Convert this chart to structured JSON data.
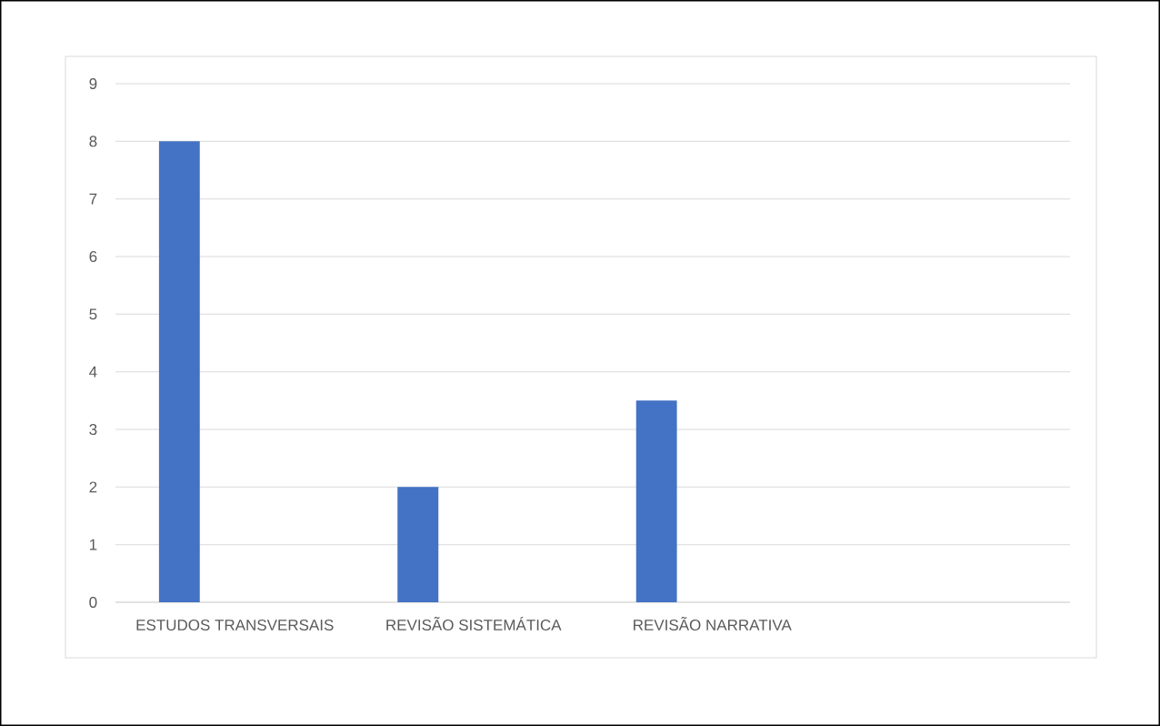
{
  "chart_data": {
    "type": "bar",
    "categories": [
      "ESTUDOS TRANSVERSAIS",
      "REVISÃO SISTEMÁTICA",
      "REVISÃO NARRATIVA",
      null
    ],
    "values": [
      8,
      2,
      3.5,
      null
    ],
    "color": "#4472c4",
    "ylim": [
      0,
      9
    ],
    "yticks": [
      0,
      1,
      2,
      3,
      4,
      5,
      6,
      7,
      8,
      9
    ],
    "grid": "y"
  }
}
